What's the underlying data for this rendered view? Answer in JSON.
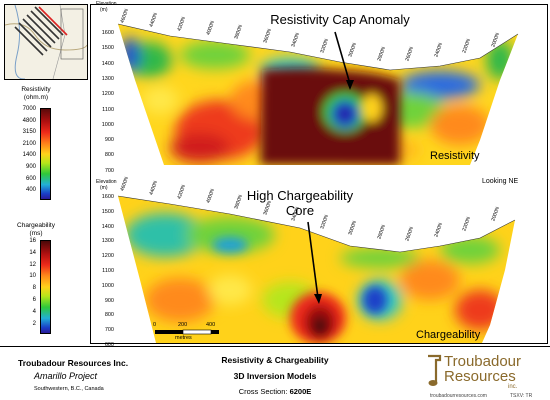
{
  "colors": {
    "frame": "#000000",
    "logo_gold": "#8a6a2c"
  },
  "elevation_label": {
    "line1": "Elevation",
    "line2": "(m)"
  },
  "resistivity_section": {
    "elev_ticks": [
      "1600",
      "1500",
      "1400",
      "1300",
      "1200",
      "1100",
      "1000",
      "900",
      "800",
      "700"
    ],
    "northings": [
      "4600N",
      "4400N",
      "4200N",
      "4000N",
      "3800N",
      "3600N",
      "3400N",
      "3200N",
      "3000N",
      "2800N",
      "2600N",
      "2400N",
      "2200N",
      "2000N"
    ],
    "annotation": "Resistivity Cap Anomaly",
    "label": "Resistivity"
  },
  "chargeability_section": {
    "elev_ticks": [
      "1600",
      "1500",
      "1400",
      "1300",
      "1200",
      "1100",
      "1000",
      "900",
      "800",
      "700",
      "600"
    ],
    "northings": [
      "4600N",
      "4400N",
      "4200N",
      "4000N",
      "3800N",
      "3600N",
      "3400N",
      "3200N",
      "3000N",
      "2800N",
      "2600N",
      "2400N",
      "2200N",
      "2000N"
    ],
    "annotation_line1": "High Chargeability",
    "annotation_line2": "Core",
    "label": "Chargeability"
  },
  "looking_label": "Looking NE",
  "resistivity_legend": {
    "title1": "Resistivity",
    "title2": "(ohm.m)",
    "values": [
      "7000",
      "4800",
      "3150",
      "2100",
      "1400",
      "900",
      "600",
      "400"
    ]
  },
  "chargeability_legend": {
    "title1": "Chargeability",
    "title2": "(ms)",
    "values": [
      "16",
      "14",
      "12",
      "10",
      "8",
      "6",
      "4",
      "2"
    ]
  },
  "scale_bar": {
    "labels": [
      "0",
      "200",
      "400"
    ],
    "unit": "metres"
  },
  "footer": {
    "company": "Troubadour Resources Inc.",
    "project": "Amarillo Project",
    "location": "Southwestern, B.C., Canada",
    "title1": "Resistivity & Chargeability",
    "title2": "3D Inversion Models",
    "cross_prefix": "Cross Section:",
    "cross_value": "6200E",
    "logo_line1": "Troubadour",
    "logo_line2": "Resources",
    "logo_line3": "inc.",
    "url": "troubadourresources.com",
    "ticker": "TSXV: TR"
  }
}
